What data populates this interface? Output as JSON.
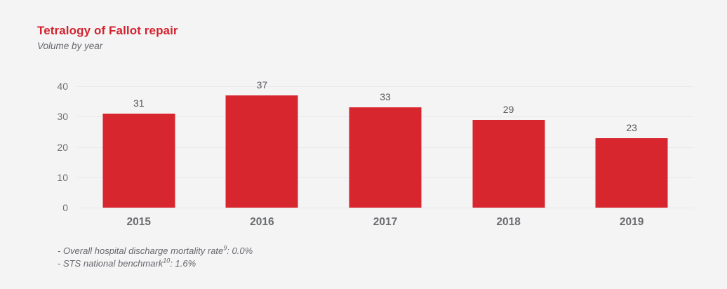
{
  "header": {
    "title": "Tetralogy of Fallot repair",
    "subtitle": "Volume by year"
  },
  "chart_data": {
    "type": "bar",
    "categories": [
      "2015",
      "2016",
      "2017",
      "2018",
      "2019"
    ],
    "values": [
      31,
      37,
      33,
      29,
      23
    ],
    "title": "Tetralogy of Fallot repair",
    "subtitle": "Volume by year",
    "xlabel": "",
    "ylabel": "",
    "ylim": [
      0,
      40
    ],
    "yticks": [
      0,
      10,
      20,
      30,
      40
    ],
    "grid": true,
    "legend": "none",
    "bar_color": "#d8262e"
  },
  "colors": {
    "background": "#f4f4f5",
    "bar_red": "#d8262e",
    "title_red": "#d2232e",
    "gridline": "#e8e8ea",
    "axis_text": "#707176",
    "value_text": "#57585c",
    "year_text": "#6b6c70",
    "note_text": "#66676c"
  },
  "notes": [
    {
      "before": "- Overall hospital discharge mortality rate",
      "sup": "9",
      "after": ": 0.0%"
    },
    {
      "before": "- STS national benchmark",
      "sup": "10",
      "after": ": 1.6%"
    }
  ]
}
